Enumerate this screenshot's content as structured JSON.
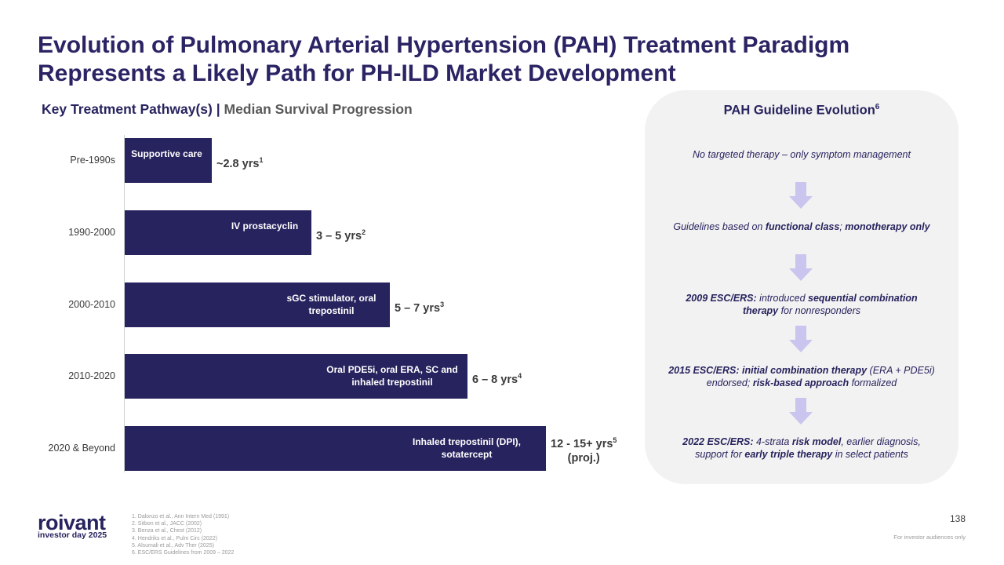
{
  "header": {
    "title": "Evolution of Pulmonary Arterial Hypertension (PAH) Treatment Paradigm Represents a Likely Path for PH-ILD Market Development",
    "subtitle": [
      "Key Treatment Pathway(s) |",
      "Median Survival Progression"
    ]
  },
  "pathway": {
    "rows": [
      {
        "era": "Pre-1990s",
        "treatment": "Supportive care",
        "survival": "~2.8 yrs",
        "ref": "1"
      },
      {
        "era": "1990-2000",
        "treatment": "IV prostacyclin",
        "survival": "3 – 5 yrs",
        "ref": "2"
      },
      {
        "era": "2000-2010",
        "treatment": "sGC stimulator, oral trepostinil",
        "survival": "5 – 7 yrs",
        "ref": "3"
      },
      {
        "era": "2010-2020",
        "treatment": "Oral PDE5i, oral ERA, SC and inhaled trepostinil",
        "survival": "6 – 8 yrs",
        "ref": "4"
      },
      {
        "era": "2020 & Beyond",
        "treatment": "Inhaled trepostinil (DPI), sotatercept",
        "survival": "12 - 15+ yrs",
        "ref": "5",
        "note": "(proj.)"
      }
    ]
  },
  "guideline": {
    "title": "PAH Guideline Evolution",
    "ref": "6",
    "steps": [
      [
        "No targeted therapy – only symptom management"
      ],
      [
        "Guidelines based on ",
        "functional class",
        "; ",
        "monotherapy only"
      ],
      [
        "2009 ESC/ERS:",
        " introduced ",
        "sequential combination therapy",
        " for nonresponders"
      ],
      [
        "2015 ESC/ERS: initial combination therapy",
        " (ERA + PDE5i) endorsed; ",
        "risk-based approach",
        " formalized"
      ],
      [
        "2022 ESC/ERS:",
        " 4-strata ",
        "risk model",
        ", earlier diagnosis, support for ",
        "early triple therapy",
        " in select patients"
      ]
    ]
  },
  "footer": {
    "notes": [
      "1. Dalonzo et al., Ann Intern Med (1991)",
      "2. Sitbon et al., JACC (2002)",
      "3. Benza et al., Chest (2012)",
      "4. Hendriks et al., Pulm Circ (2022)",
      "5. Alsumali et al., Adv Ther (2025)",
      "6. ESC/ERS Guidelines from 2009 – 2022"
    ],
    "logo": "roivant",
    "logo_sub": "investor day 2025",
    "page": "138",
    "disclaimer": "For investor audiences only"
  }
}
